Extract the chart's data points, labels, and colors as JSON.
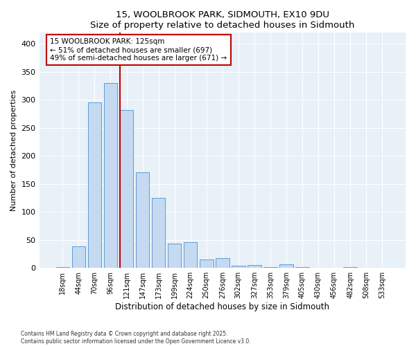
{
  "title": "15, WOOLBROOK PARK, SIDMOUTH, EX10 9DU",
  "subtitle": "Size of property relative to detached houses in Sidmouth",
  "xlabel": "Distribution of detached houses by size in Sidmouth",
  "ylabel": "Number of detached properties",
  "categories": [
    "18sqm",
    "44sqm",
    "70sqm",
    "96sqm",
    "121sqm",
    "147sqm",
    "173sqm",
    "199sqm",
    "224sqm",
    "250sqm",
    "276sqm",
    "302sqm",
    "327sqm",
    "353sqm",
    "379sqm",
    "405sqm",
    "430sqm",
    "456sqm",
    "482sqm",
    "508sqm",
    "533sqm"
  ],
  "values": [
    2,
    38,
    295,
    330,
    282,
    170,
    125,
    43,
    46,
    15,
    17,
    4,
    5,
    1,
    6,
    1,
    0,
    0,
    1,
    0,
    0
  ],
  "bar_color": "#c5daf0",
  "bar_edge_color": "#5b9bd5",
  "highlight_index": 4,
  "highlight_color": "#c00000",
  "annotation_title": "15 WOOLBROOK PARK: 125sqm",
  "annotation_line1": "← 51% of detached houses are smaller (697)",
  "annotation_line2": "49% of semi-detached houses are larger (671) →",
  "annotation_box_color": "#ffffff",
  "annotation_box_edge": "#c00000",
  "ylim": [
    0,
    420
  ],
  "yticks": [
    0,
    50,
    100,
    150,
    200,
    250,
    300,
    350,
    400
  ],
  "footer1": "Contains HM Land Registry data © Crown copyright and database right 2025.",
  "footer2": "Contains public sector information licensed under the Open Government Licence v3.0.",
  "fig_bg_color": "#ffffff",
  "plot_bg_color": "#e8f0f8",
  "grid_color": "#ffffff"
}
